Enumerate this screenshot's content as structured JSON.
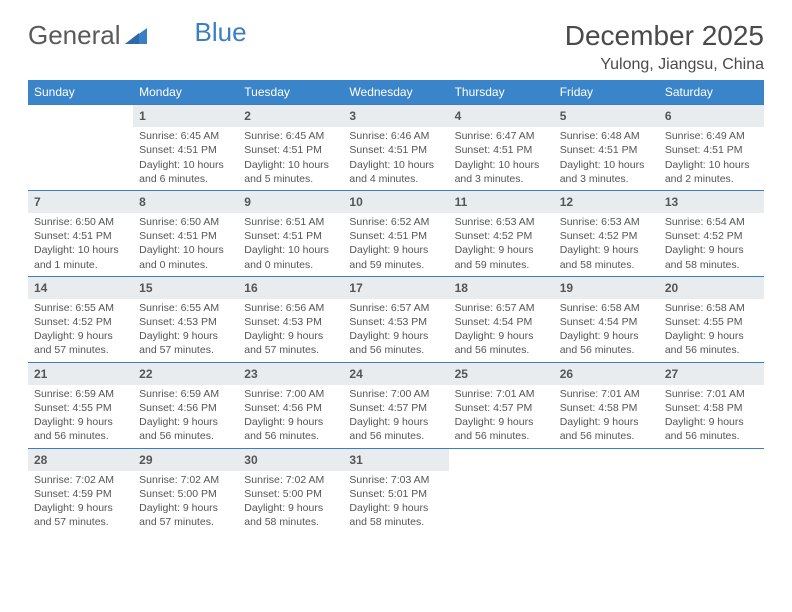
{
  "logo": {
    "part1": "General",
    "part2": "Blue"
  },
  "header": {
    "title": "December 2025",
    "location": "Yulong, Jiangsu, China"
  },
  "colors": {
    "header_bg": "#3a85c9",
    "header_text": "#ffffff",
    "daynum_bg": "#e9ecef",
    "row_border": "#3a7fc4",
    "logo_gray": "#5a5a5a",
    "logo_blue": "#3a7fc4",
    "text": "#555555",
    "background": "#ffffff"
  },
  "weekdays": [
    "Sunday",
    "Monday",
    "Tuesday",
    "Wednesday",
    "Thursday",
    "Friday",
    "Saturday"
  ],
  "typography": {
    "title_fontsize": 28,
    "location_fontsize": 16,
    "weekday_fontsize": 12,
    "daynum_fontsize": 12,
    "cell_fontsize": 10.5
  },
  "days": [
    {
      "n": "1",
      "sunrise": "6:45 AM",
      "sunset": "4:51 PM",
      "daylight": "10 hours and 6 minutes."
    },
    {
      "n": "2",
      "sunrise": "6:45 AM",
      "sunset": "4:51 PM",
      "daylight": "10 hours and 5 minutes."
    },
    {
      "n": "3",
      "sunrise": "6:46 AM",
      "sunset": "4:51 PM",
      "daylight": "10 hours and 4 minutes."
    },
    {
      "n": "4",
      "sunrise": "6:47 AM",
      "sunset": "4:51 PM",
      "daylight": "10 hours and 3 minutes."
    },
    {
      "n": "5",
      "sunrise": "6:48 AM",
      "sunset": "4:51 PM",
      "daylight": "10 hours and 3 minutes."
    },
    {
      "n": "6",
      "sunrise": "6:49 AM",
      "sunset": "4:51 PM",
      "daylight": "10 hours and 2 minutes."
    },
    {
      "n": "7",
      "sunrise": "6:50 AM",
      "sunset": "4:51 PM",
      "daylight": "10 hours and 1 minute."
    },
    {
      "n": "8",
      "sunrise": "6:50 AM",
      "sunset": "4:51 PM",
      "daylight": "10 hours and 0 minutes."
    },
    {
      "n": "9",
      "sunrise": "6:51 AM",
      "sunset": "4:51 PM",
      "daylight": "10 hours and 0 minutes."
    },
    {
      "n": "10",
      "sunrise": "6:52 AM",
      "sunset": "4:51 PM",
      "daylight": "9 hours and 59 minutes."
    },
    {
      "n": "11",
      "sunrise": "6:53 AM",
      "sunset": "4:52 PM",
      "daylight": "9 hours and 59 minutes."
    },
    {
      "n": "12",
      "sunrise": "6:53 AM",
      "sunset": "4:52 PM",
      "daylight": "9 hours and 58 minutes."
    },
    {
      "n": "13",
      "sunrise": "6:54 AM",
      "sunset": "4:52 PM",
      "daylight": "9 hours and 58 minutes."
    },
    {
      "n": "14",
      "sunrise": "6:55 AM",
      "sunset": "4:52 PM",
      "daylight": "9 hours and 57 minutes."
    },
    {
      "n": "15",
      "sunrise": "6:55 AM",
      "sunset": "4:53 PM",
      "daylight": "9 hours and 57 minutes."
    },
    {
      "n": "16",
      "sunrise": "6:56 AM",
      "sunset": "4:53 PM",
      "daylight": "9 hours and 57 minutes."
    },
    {
      "n": "17",
      "sunrise": "6:57 AM",
      "sunset": "4:53 PM",
      "daylight": "9 hours and 56 minutes."
    },
    {
      "n": "18",
      "sunrise": "6:57 AM",
      "sunset": "4:54 PM",
      "daylight": "9 hours and 56 minutes."
    },
    {
      "n": "19",
      "sunrise": "6:58 AM",
      "sunset": "4:54 PM",
      "daylight": "9 hours and 56 minutes."
    },
    {
      "n": "20",
      "sunrise": "6:58 AM",
      "sunset": "4:55 PM",
      "daylight": "9 hours and 56 minutes."
    },
    {
      "n": "21",
      "sunrise": "6:59 AM",
      "sunset": "4:55 PM",
      "daylight": "9 hours and 56 minutes."
    },
    {
      "n": "22",
      "sunrise": "6:59 AM",
      "sunset": "4:56 PM",
      "daylight": "9 hours and 56 minutes."
    },
    {
      "n": "23",
      "sunrise": "7:00 AM",
      "sunset": "4:56 PM",
      "daylight": "9 hours and 56 minutes."
    },
    {
      "n": "24",
      "sunrise": "7:00 AM",
      "sunset": "4:57 PM",
      "daylight": "9 hours and 56 minutes."
    },
    {
      "n": "25",
      "sunrise": "7:01 AM",
      "sunset": "4:57 PM",
      "daylight": "9 hours and 56 minutes."
    },
    {
      "n": "26",
      "sunrise": "7:01 AM",
      "sunset": "4:58 PM",
      "daylight": "9 hours and 56 minutes."
    },
    {
      "n": "27",
      "sunrise": "7:01 AM",
      "sunset": "4:58 PM",
      "daylight": "9 hours and 56 minutes."
    },
    {
      "n": "28",
      "sunrise": "7:02 AM",
      "sunset": "4:59 PM",
      "daylight": "9 hours and 57 minutes."
    },
    {
      "n": "29",
      "sunrise": "7:02 AM",
      "sunset": "5:00 PM",
      "daylight": "9 hours and 57 minutes."
    },
    {
      "n": "30",
      "sunrise": "7:02 AM",
      "sunset": "5:00 PM",
      "daylight": "9 hours and 58 minutes."
    },
    {
      "n": "31",
      "sunrise": "7:03 AM",
      "sunset": "5:01 PM",
      "daylight": "9 hours and 58 minutes."
    }
  ],
  "labels": {
    "sunrise": "Sunrise: ",
    "sunset": "Sunset: ",
    "daylight": "Daylight: "
  },
  "layout": {
    "first_weekday_index": 1,
    "total_days": 31,
    "columns": 7,
    "rows": 5
  }
}
